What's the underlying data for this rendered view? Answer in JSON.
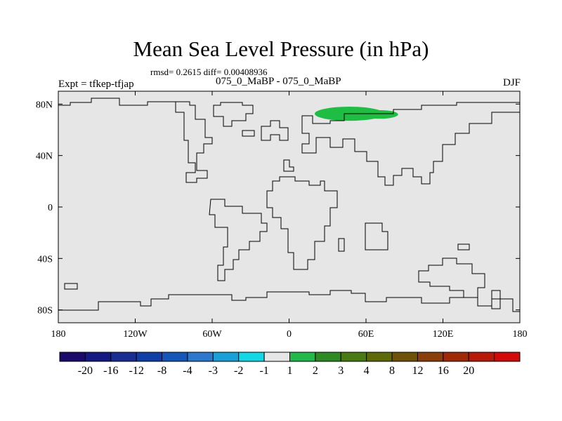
{
  "title": "Mean Sea Level Pressure (in hPa)",
  "stats": "rmsd= 0.2615 diff= 0.00408936",
  "experiment": "Expt = tfkep-tfjap",
  "period": "075_0_MaBP - 075_0_MaBP",
  "season": "DJF",
  "map": {
    "projection": "cylindrical equidistant",
    "xlim": [
      -180,
      180
    ],
    "ylim": [
      -90,
      90
    ],
    "x_ticks": [
      {
        "value": -180,
        "label": "180"
      },
      {
        "value": -120,
        "label": "120W"
      },
      {
        "value": -60,
        "label": "60W"
      },
      {
        "value": 0,
        "label": "0"
      },
      {
        "value": 60,
        "label": "60E"
      },
      {
        "value": 120,
        "label": "120E"
      },
      {
        "value": 180,
        "label": "180"
      }
    ],
    "y_ticks": [
      {
        "value": 80,
        "label": "80N"
      },
      {
        "value": 40,
        "label": "40N"
      },
      {
        "value": 0,
        "label": "0"
      },
      {
        "value": -40,
        "label": "40S"
      },
      {
        "value": -80,
        "label": "80S"
      }
    ],
    "background_color": "#e6e6e6",
    "anomaly_patches": [
      {
        "level": "1 to 2",
        "color": "#1fbd44",
        "lon_range": [
          20,
          85
        ],
        "lat_range": [
          67,
          78
        ]
      }
    ]
  },
  "colorbar": {
    "colors": [
      "#1b0a6b",
      "#141a82",
      "#1a2d93",
      "#0f3fa6",
      "#1457b8",
      "#2b78cc",
      "#1aa0d8",
      "#14d7e6",
      "#e6e6e6",
      "#22b84a",
      "#2e8a22",
      "#4a7a14",
      "#5e6a0a",
      "#6e520a",
      "#8a3e0a",
      "#a02a08",
      "#b81a0a",
      "#d20a0a"
    ],
    "labels": [
      "-20",
      "-16",
      "-12",
      "-8",
      "-4",
      "-3",
      "-2",
      "-1",
      "1",
      "2",
      "3",
      "4",
      "8",
      "12",
      "16",
      "20"
    ]
  }
}
